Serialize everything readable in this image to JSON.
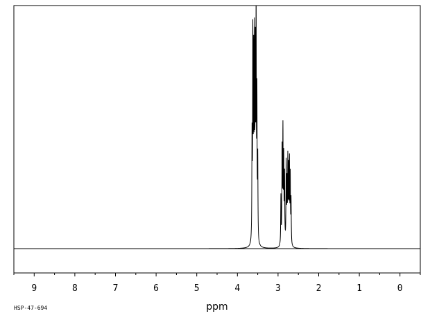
{
  "chart_data": {
    "type": "line",
    "title": "",
    "xlabel": "ppm",
    "ylabel": "",
    "xlim": [
      9.5,
      -0.5
    ],
    "ylim": [
      -0.12,
      1.1
    ],
    "x_reversed": true,
    "grid": false,
    "legend": "none",
    "xticks": [
      9,
      8,
      7,
      6,
      5,
      4,
      3,
      2,
      1,
      0
    ],
    "xtick_labels": [
      "9",
      "8",
      "7",
      "6",
      "5",
      "4",
      "3",
      "2",
      "1",
      "0"
    ],
    "minor_tick_step": 0.5,
    "line_color": "#000000",
    "peaks": [
      {
        "ppm": 3.64,
        "height": 0.46,
        "width": 0.006
      },
      {
        "ppm": 3.62,
        "height": 0.9,
        "width": 0.006
      },
      {
        "ppm": 3.6,
        "height": 0.78,
        "width": 0.006
      },
      {
        "ppm": 3.58,
        "height": 0.86,
        "width": 0.006
      },
      {
        "ppm": 3.56,
        "height": 0.8,
        "width": 0.006
      },
      {
        "ppm": 3.54,
        "height": 1.05,
        "width": 0.006
      },
      {
        "ppm": 3.52,
        "height": 0.62,
        "width": 0.006
      },
      {
        "ppm": 3.5,
        "height": 0.36,
        "width": 0.006
      },
      {
        "ppm": 2.93,
        "height": 0.22,
        "width": 0.006
      },
      {
        "ppm": 2.9,
        "height": 0.42,
        "width": 0.006
      },
      {
        "ppm": 2.88,
        "height": 0.5,
        "width": 0.006
      },
      {
        "ppm": 2.86,
        "height": 0.37,
        "width": 0.006
      },
      {
        "ppm": 2.84,
        "height": 0.3,
        "width": 0.006
      },
      {
        "ppm": 2.8,
        "height": 0.36,
        "width": 0.006
      },
      {
        "ppm": 2.78,
        "height": 0.26,
        "width": 0.006
      },
      {
        "ppm": 2.76,
        "height": 0.37,
        "width": 0.006
      },
      {
        "ppm": 2.74,
        "height": 0.32,
        "width": 0.006
      },
      {
        "ppm": 2.72,
        "height": 0.36,
        "width": 0.006
      },
      {
        "ppm": 2.7,
        "height": 0.3,
        "width": 0.006
      },
      {
        "ppm": 2.68,
        "height": 0.2,
        "width": 0.006
      }
    ]
  },
  "footer": {
    "spectrum_code": "HSP-47-694"
  }
}
